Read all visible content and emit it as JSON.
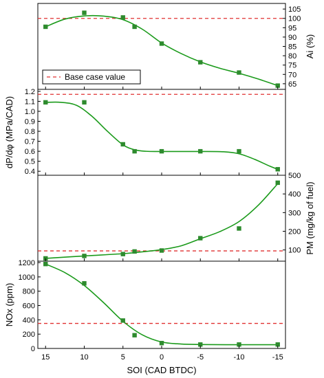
{
  "chart_data": {
    "type": "line",
    "shared_x": {
      "label": "SOI (CAD BTDC)",
      "ticks": [
        15,
        10,
        5,
        0,
        -5,
        -10,
        -15
      ],
      "tick_labels": [
        "15",
        "10",
        "5",
        "0",
        "-5",
        "-10",
        "-15"
      ],
      "range": [
        16,
        -16
      ],
      "reversed": true
    },
    "legend": {
      "label": "Base case value",
      "placement": "bottom-left of top panel"
    },
    "colors": {
      "series": "#1a9a1a",
      "marker": "#2e8b2e",
      "baseline": "#e03030"
    },
    "panels": [
      {
        "id": "ai",
        "ylabel": "Ai (%)",
        "axis_side": "right",
        "ylim": [
          62,
          108
        ],
        "yticks": [
          65,
          70,
          75,
          80,
          85,
          90,
          95,
          100,
          105
        ],
        "ytick_labels": [
          "65",
          "70",
          "75",
          "80",
          "85",
          "90",
          "95",
          "100",
          "105"
        ],
        "baseline": 100,
        "points": [
          {
            "x": 15,
            "y": 95.5
          },
          {
            "x": 10,
            "y": 103
          },
          {
            "x": 5,
            "y": 100.5
          },
          {
            "x": 3.5,
            "y": 95.5
          },
          {
            "x": 0,
            "y": 86.5
          },
          {
            "x": -5,
            "y": 76.5
          },
          {
            "x": -10,
            "y": 71
          },
          {
            "x": -15,
            "y": 64
          }
        ],
        "curve": [
          {
            "x": 15,
            "y": 95.5
          },
          {
            "x": 12.5,
            "y": 99.6
          },
          {
            "x": 10,
            "y": 101.3
          },
          {
            "x": 7.5,
            "y": 101.2
          },
          {
            "x": 5,
            "y": 99.3
          },
          {
            "x": 2.5,
            "y": 94.2
          },
          {
            "x": 0,
            "y": 86.8
          },
          {
            "x": -2.5,
            "y": 81.2
          },
          {
            "x": -5,
            "y": 76.7
          },
          {
            "x": -7.5,
            "y": 73.3
          },
          {
            "x": -10,
            "y": 70.6
          },
          {
            "x": -12.5,
            "y": 67.5
          },
          {
            "x": -15,
            "y": 64
          }
        ]
      },
      {
        "id": "dpdphi",
        "ylabel": "dP/dφ (MPa/CAD)",
        "axis_side": "left",
        "ylim": [
          0.36,
          1.22
        ],
        "yticks": [
          0.4,
          0.5,
          0.6,
          0.7,
          0.8,
          0.9,
          1.0,
          1.1,
          1.2
        ],
        "ytick_labels": [
          "0.4",
          "0.5",
          "0.6",
          "0.7",
          "0.8",
          "0.9",
          "1.0",
          "1.1",
          "1.2"
        ],
        "baseline": 1.17,
        "points": [
          {
            "x": 15,
            "y": 1.09
          },
          {
            "x": 10,
            "y": 1.09
          },
          {
            "x": 5,
            "y": 0.67
          },
          {
            "x": 3.5,
            "y": 0.6
          },
          {
            "x": 0,
            "y": 0.6
          },
          {
            "x": -5,
            "y": 0.6
          },
          {
            "x": -10,
            "y": 0.6
          },
          {
            "x": -15,
            "y": 0.42
          }
        ],
        "curve": [
          {
            "x": 15,
            "y": 1.09
          },
          {
            "x": 13,
            "y": 1.09
          },
          {
            "x": 11,
            "y": 1.06
          },
          {
            "x": 9,
            "y": 0.95
          },
          {
            "x": 7,
            "y": 0.8
          },
          {
            "x": 5,
            "y": 0.665
          },
          {
            "x": 3.5,
            "y": 0.615
          },
          {
            "x": 2,
            "y": 0.6
          },
          {
            "x": 0,
            "y": 0.598
          },
          {
            "x": -5,
            "y": 0.598
          },
          {
            "x": -8,
            "y": 0.595
          },
          {
            "x": -10,
            "y": 0.575
          },
          {
            "x": -12,
            "y": 0.52
          },
          {
            "x": -14,
            "y": 0.45
          },
          {
            "x": -15,
            "y": 0.42
          }
        ]
      },
      {
        "id": "pm",
        "ylabel": "PM (mg/kg of fuel)",
        "axis_side": "right",
        "ylim": [
          40,
          500
        ],
        "yticks": [
          100,
          200,
          300,
          400,
          500
        ],
        "ytick_labels": [
          "100",
          "200",
          "300",
          "400",
          "500"
        ],
        "baseline": 95,
        "points": [
          {
            "x": 15,
            "y": 55
          },
          {
            "x": 10,
            "y": 68
          },
          {
            "x": 5,
            "y": 78
          },
          {
            "x": 3.5,
            "y": 92
          },
          {
            "x": 0,
            "y": 97
          },
          {
            "x": -5,
            "y": 163
          },
          {
            "x": -10,
            "y": 215
          },
          {
            "x": -15,
            "y": 460
          }
        ],
        "curve": [
          {
            "x": 15,
            "y": 55
          },
          {
            "x": 10,
            "y": 68
          },
          {
            "x": 5,
            "y": 80
          },
          {
            "x": 2.5,
            "y": 90
          },
          {
            "x": 0,
            "y": 102
          },
          {
            "x": -2.5,
            "y": 122
          },
          {
            "x": -5,
            "y": 160
          },
          {
            "x": -7.5,
            "y": 198
          },
          {
            "x": -10,
            "y": 252
          },
          {
            "x": -12.5,
            "y": 340
          },
          {
            "x": -15,
            "y": 455
          }
        ]
      },
      {
        "id": "nox",
        "ylabel": "NOx (ppm)",
        "axis_side": "left",
        "ylim": [
          0,
          1220
        ],
        "yticks": [
          0,
          200,
          400,
          600,
          800,
          1000,
          1200
        ],
        "ytick_labels": [
          "0",
          "200",
          "400",
          "600",
          "800",
          "1000",
          "1200"
        ],
        "baseline": 350,
        "points": [
          {
            "x": 15,
            "y": 1180
          },
          {
            "x": 10,
            "y": 910
          },
          {
            "x": 5,
            "y": 390
          },
          {
            "x": 3.5,
            "y": 185
          },
          {
            "x": 0,
            "y": 75
          },
          {
            "x": -5,
            "y": 55
          },
          {
            "x": -10,
            "y": 55
          },
          {
            "x": -15,
            "y": 55
          }
        ],
        "curve": [
          {
            "x": 15,
            "y": 1180
          },
          {
            "x": 12.5,
            "y": 1060
          },
          {
            "x": 10,
            "y": 880
          },
          {
            "x": 7.5,
            "y": 640
          },
          {
            "x": 5,
            "y": 380
          },
          {
            "x": 2.5,
            "y": 190
          },
          {
            "x": 0,
            "y": 90
          },
          {
            "x": -2.5,
            "y": 62
          },
          {
            "x": -5,
            "y": 55
          },
          {
            "x": -10,
            "y": 52
          },
          {
            "x": -15,
            "y": 52
          }
        ]
      }
    ]
  }
}
